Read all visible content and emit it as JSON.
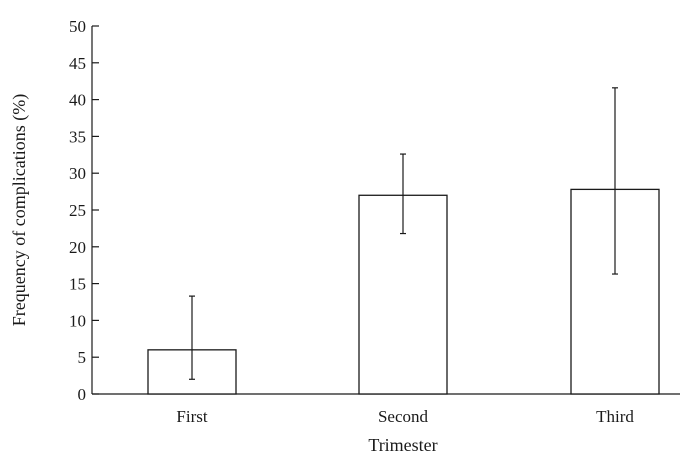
{
  "chart_data": {
    "type": "bar",
    "title": "",
    "xlabel": "Trimester",
    "ylabel": "Frequency of complications (%)",
    "categories": [
      "First",
      "Second",
      "Third"
    ],
    "values": [
      6.0,
      27.0,
      27.8
    ],
    "error_low": [
      2.0,
      21.8,
      16.3
    ],
    "error_high": [
      13.3,
      32.6,
      41.6
    ],
    "ylim": [
      0,
      50
    ],
    "yticks": [
      0,
      5,
      10,
      15,
      20,
      25,
      30,
      35,
      40,
      45,
      50
    ],
    "grid": false,
    "bar_fill": "#ffffff",
    "bar_edge": "#1a1a1a"
  }
}
